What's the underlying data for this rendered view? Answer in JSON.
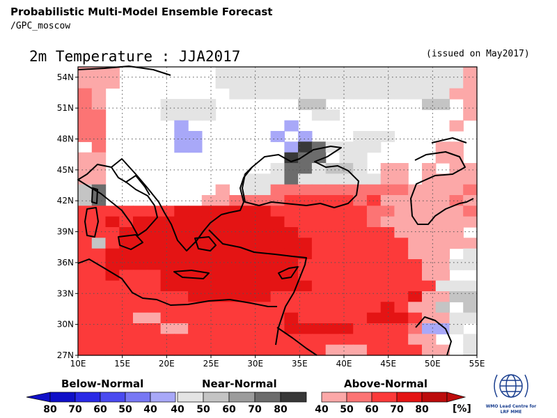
{
  "header": {
    "title": "Probabilistic Multi-Model Ensemble Forecast",
    "subtitle": "/GPC_moscow",
    "plot_title": "2m Temperature : JJA2017",
    "issued": "(issued on May2017)"
  },
  "map": {
    "lon_range": [
      10,
      55
    ],
    "lat_range": [
      27,
      55
    ],
    "lon_ticks": [
      "10E",
      "15E",
      "20E",
      "25E",
      "30E",
      "35E",
      "40E",
      "45E",
      "50E",
      "55E"
    ],
    "lat_ticks": [
      "27N",
      "30N",
      "33N",
      "36N",
      "39N",
      "42N",
      "45N",
      "48N",
      "51N",
      "54N"
    ],
    "gridlines": "dotted",
    "colors": {
      "below": [
        "#1010c8",
        "#2a2ae6",
        "#4a4af0",
        "#7878f4",
        "#a8a8f8"
      ],
      "near": [
        "#e4e4e4",
        "#c4c4c4",
        "#9c9c9c",
        "#6c6c6c",
        "#383838"
      ],
      "above": [
        "#fca8a8",
        "#fc7474",
        "#fc3a3a",
        "#e41414",
        "#bc0c0c"
      ]
    }
  },
  "legend": {
    "below_title": "Below-Normal",
    "below_labels": [
      "80",
      "70",
      "60",
      "50",
      "40"
    ],
    "near_title": "Near-Normal",
    "near_labels": [
      "40",
      "50",
      "60",
      "70",
      "80"
    ],
    "above_title": "Above-Normal",
    "above_labels": [
      "40",
      "50",
      "60",
      "70",
      "80"
    ],
    "unit": "[%]"
  },
  "logo": {
    "text": "WMO Lead Centre for LRF MME"
  }
}
